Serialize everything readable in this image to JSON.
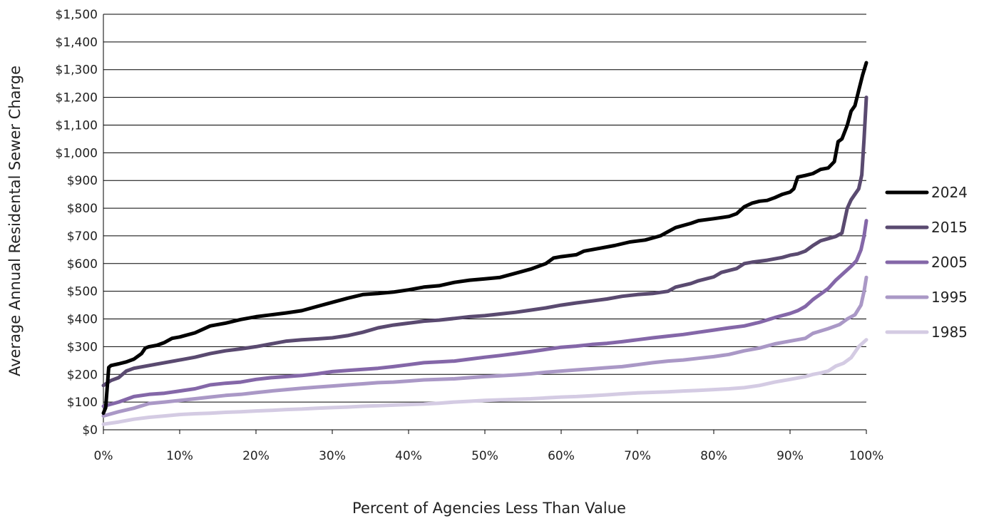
{
  "chart_data": {
    "type": "line",
    "xlabel": "Percent of Agencies Less Than Value",
    "ylabel": "Average Annual Residental Sewer Charge",
    "xlim": [
      0,
      100
    ],
    "ylim": [
      0,
      1500
    ],
    "x_ticks": [
      0,
      10,
      20,
      30,
      40,
      50,
      60,
      70,
      80,
      90,
      100
    ],
    "x_tick_labels": [
      "0%",
      "10%",
      "20%",
      "30%",
      "40%",
      "50%",
      "60%",
      "70%",
      "80%",
      "90%",
      "100%"
    ],
    "y_ticks": [
      0,
      100,
      200,
      300,
      400,
      500,
      600,
      700,
      800,
      900,
      1000,
      1100,
      1200,
      1300,
      1400,
      1500
    ],
    "y_tick_labels": [
      "$0",
      "$100",
      "$200",
      "$300",
      "$400",
      "$500",
      "$600",
      "$700",
      "$800",
      "$900",
      "$1,000",
      "$1,100",
      "$1,200",
      "$1,300",
      "$1,400",
      "$1,500"
    ],
    "grid": true,
    "legend_position": "right",
    "series": [
      {
        "name": "2024",
        "color": "#000000",
        "points": [
          [
            0,
            60
          ],
          [
            0.3,
            80
          ],
          [
            0.7,
            225
          ],
          [
            1,
            232
          ],
          [
            2,
            238
          ],
          [
            3,
            245
          ],
          [
            4,
            255
          ],
          [
            5,
            275
          ],
          [
            5.5,
            295
          ],
          [
            6,
            300
          ],
          [
            7,
            305
          ],
          [
            8,
            315
          ],
          [
            9,
            330
          ],
          [
            10,
            335
          ],
          [
            12,
            350
          ],
          [
            14,
            375
          ],
          [
            16,
            385
          ],
          [
            18,
            398
          ],
          [
            20,
            408
          ],
          [
            22,
            415
          ],
          [
            24,
            422
          ],
          [
            26,
            430
          ],
          [
            28,
            445
          ],
          [
            30,
            460
          ],
          [
            32,
            475
          ],
          [
            34,
            488
          ],
          [
            36,
            492
          ],
          [
            38,
            497
          ],
          [
            40,
            505
          ],
          [
            42,
            515
          ],
          [
            44,
            520
          ],
          [
            46,
            532
          ],
          [
            48,
            540
          ],
          [
            50,
            545
          ],
          [
            52,
            550
          ],
          [
            54,
            565
          ],
          [
            56,
            580
          ],
          [
            58,
            600
          ],
          [
            59,
            620
          ],
          [
            60,
            625
          ],
          [
            62,
            632
          ],
          [
            63,
            645
          ],
          [
            65,
            655
          ],
          [
            67,
            665
          ],
          [
            69,
            678
          ],
          [
            71,
            685
          ],
          [
            73,
            700
          ],
          [
            74,
            715
          ],
          [
            75,
            730
          ],
          [
            77,
            745
          ],
          [
            78,
            755
          ],
          [
            80,
            762
          ],
          [
            82,
            770
          ],
          [
            83,
            780
          ],
          [
            84,
            805
          ],
          [
            85,
            818
          ],
          [
            86,
            825
          ],
          [
            87,
            828
          ],
          [
            88,
            838
          ],
          [
            89,
            850
          ],
          [
            90,
            858
          ],
          [
            90.5,
            870
          ],
          [
            91,
            912
          ],
          [
            92,
            918
          ],
          [
            93,
            925
          ],
          [
            94,
            940
          ],
          [
            95,
            945
          ],
          [
            95.8,
            968
          ],
          [
            96.3,
            1040
          ],
          [
            96.8,
            1050
          ],
          [
            97.5,
            1100
          ],
          [
            98,
            1150
          ],
          [
            98.5,
            1170
          ],
          [
            99,
            1225
          ],
          [
            99.5,
            1280
          ],
          [
            100,
            1325
          ]
        ]
      },
      {
        "name": "2015",
        "color": "#5a4a70",
        "points": [
          [
            0,
            160
          ],
          [
            1,
            178
          ],
          [
            2,
            188
          ],
          [
            3,
            212
          ],
          [
            4,
            222
          ],
          [
            6,
            232
          ],
          [
            8,
            242
          ],
          [
            10,
            252
          ],
          [
            12,
            262
          ],
          [
            14,
            275
          ],
          [
            16,
            285
          ],
          [
            18,
            292
          ],
          [
            20,
            300
          ],
          [
            22,
            310
          ],
          [
            24,
            320
          ],
          [
            26,
            325
          ],
          [
            28,
            328
          ],
          [
            30,
            332
          ],
          [
            32,
            340
          ],
          [
            34,
            352
          ],
          [
            36,
            368
          ],
          [
            38,
            378
          ],
          [
            40,
            385
          ],
          [
            42,
            392
          ],
          [
            44,
            396
          ],
          [
            46,
            402
          ],
          [
            48,
            408
          ],
          [
            50,
            412
          ],
          [
            52,
            418
          ],
          [
            54,
            424
          ],
          [
            56,
            432
          ],
          [
            58,
            440
          ],
          [
            60,
            450
          ],
          [
            62,
            458
          ],
          [
            64,
            465
          ],
          [
            66,
            472
          ],
          [
            68,
            482
          ],
          [
            70,
            488
          ],
          [
            72,
            492
          ],
          [
            74,
            500
          ],
          [
            75,
            515
          ],
          [
            77,
            528
          ],
          [
            78,
            538
          ],
          [
            80,
            552
          ],
          [
            81,
            568
          ],
          [
            83,
            582
          ],
          [
            84,
            600
          ],
          [
            85,
            605
          ],
          [
            87,
            612
          ],
          [
            89,
            622
          ],
          [
            90,
            630
          ],
          [
            91,
            635
          ],
          [
            92,
            645
          ],
          [
            93,
            665
          ],
          [
            94,
            682
          ],
          [
            95,
            690
          ],
          [
            96,
            698
          ],
          [
            96.8,
            710
          ],
          [
            97.5,
            800
          ],
          [
            98,
            830
          ],
          [
            98.5,
            850
          ],
          [
            99,
            870
          ],
          [
            99.4,
            920
          ],
          [
            99.7,
            1050
          ],
          [
            100,
            1200
          ]
        ]
      },
      {
        "name": "2005",
        "color": "#8467a8",
        "points": [
          [
            0,
            85
          ],
          [
            2,
            100
          ],
          [
            4,
            120
          ],
          [
            6,
            128
          ],
          [
            8,
            132
          ],
          [
            10,
            140
          ],
          [
            12,
            148
          ],
          [
            14,
            162
          ],
          [
            16,
            168
          ],
          [
            18,
            172
          ],
          [
            20,
            182
          ],
          [
            22,
            188
          ],
          [
            24,
            192
          ],
          [
            26,
            196
          ],
          [
            28,
            202
          ],
          [
            30,
            210
          ],
          [
            32,
            214
          ],
          [
            34,
            218
          ],
          [
            36,
            222
          ],
          [
            38,
            228
          ],
          [
            40,
            235
          ],
          [
            42,
            242
          ],
          [
            44,
            245
          ],
          [
            46,
            248
          ],
          [
            48,
            255
          ],
          [
            50,
            262
          ],
          [
            52,
            268
          ],
          [
            54,
            275
          ],
          [
            56,
            282
          ],
          [
            58,
            290
          ],
          [
            60,
            298
          ],
          [
            62,
            302
          ],
          [
            64,
            308
          ],
          [
            66,
            312
          ],
          [
            68,
            318
          ],
          [
            70,
            325
          ],
          [
            72,
            332
          ],
          [
            74,
            338
          ],
          [
            76,
            344
          ],
          [
            78,
            352
          ],
          [
            80,
            360
          ],
          [
            82,
            368
          ],
          [
            84,
            375
          ],
          [
            86,
            388
          ],
          [
            88,
            405
          ],
          [
            90,
            420
          ],
          [
            91,
            430
          ],
          [
            92,
            445
          ],
          [
            93,
            470
          ],
          [
            94,
            490
          ],
          [
            95,
            510
          ],
          [
            96,
            540
          ],
          [
            97,
            565
          ],
          [
            98,
            590
          ],
          [
            98.7,
            610
          ],
          [
            99.3,
            650
          ],
          [
            99.7,
            700
          ],
          [
            100,
            755
          ]
        ]
      },
      {
        "name": "1995",
        "color": "#aa98c6",
        "points": [
          [
            0,
            50
          ],
          [
            2,
            65
          ],
          [
            4,
            78
          ],
          [
            6,
            95
          ],
          [
            8,
            100
          ],
          [
            10,
            106
          ],
          [
            12,
            112
          ],
          [
            14,
            118
          ],
          [
            16,
            124
          ],
          [
            18,
            128
          ],
          [
            20,
            134
          ],
          [
            22,
            140
          ],
          [
            24,
            145
          ],
          [
            26,
            150
          ],
          [
            28,
            154
          ],
          [
            30,
            158
          ],
          [
            32,
            162
          ],
          [
            34,
            166
          ],
          [
            36,
            170
          ],
          [
            38,
            172
          ],
          [
            40,
            176
          ],
          [
            42,
            180
          ],
          [
            44,
            182
          ],
          [
            46,
            184
          ],
          [
            48,
            188
          ],
          [
            50,
            192
          ],
          [
            52,
            195
          ],
          [
            54,
            198
          ],
          [
            56,
            202
          ],
          [
            58,
            208
          ],
          [
            60,
            212
          ],
          [
            62,
            216
          ],
          [
            64,
            220
          ],
          [
            66,
            224
          ],
          [
            68,
            228
          ],
          [
            70,
            235
          ],
          [
            72,
            242
          ],
          [
            74,
            248
          ],
          [
            76,
            252
          ],
          [
            78,
            258
          ],
          [
            80,
            264
          ],
          [
            82,
            272
          ],
          [
            84,
            285
          ],
          [
            86,
            295
          ],
          [
            88,
            310
          ],
          [
            90,
            320
          ],
          [
            92,
            330
          ],
          [
            93,
            348
          ],
          [
            95,
            365
          ],
          [
            96.5,
            380
          ],
          [
            97.5,
            400
          ],
          [
            98.5,
            415
          ],
          [
            99.3,
            450
          ],
          [
            99.7,
            500
          ],
          [
            100,
            550
          ]
        ]
      },
      {
        "name": "1985",
        "color": "#d4cbe3",
        "points": [
          [
            0,
            20
          ],
          [
            2,
            28
          ],
          [
            4,
            38
          ],
          [
            6,
            45
          ],
          [
            8,
            50
          ],
          [
            10,
            55
          ],
          [
            12,
            58
          ],
          [
            14,
            60
          ],
          [
            16,
            63
          ],
          [
            18,
            65
          ],
          [
            20,
            68
          ],
          [
            22,
            70
          ],
          [
            24,
            73
          ],
          [
            26,
            75
          ],
          [
            28,
            78
          ],
          [
            30,
            80
          ],
          [
            32,
            82
          ],
          [
            34,
            85
          ],
          [
            36,
            87
          ],
          [
            38,
            89
          ],
          [
            40,
            91
          ],
          [
            42,
            93
          ],
          [
            44,
            96
          ],
          [
            46,
            100
          ],
          [
            48,
            103
          ],
          [
            50,
            106
          ],
          [
            52,
            108
          ],
          [
            54,
            110
          ],
          [
            56,
            112
          ],
          [
            58,
            115
          ],
          [
            60,
            118
          ],
          [
            62,
            120
          ],
          [
            64,
            123
          ],
          [
            66,
            126
          ],
          [
            68,
            130
          ],
          [
            70,
            133
          ],
          [
            72,
            135
          ],
          [
            74,
            137
          ],
          [
            76,
            140
          ],
          [
            78,
            142
          ],
          [
            80,
            145
          ],
          [
            82,
            148
          ],
          [
            84,
            152
          ],
          [
            86,
            160
          ],
          [
            88,
            172
          ],
          [
            90,
            182
          ],
          [
            92,
            192
          ],
          [
            93,
            200
          ],
          [
            94,
            205
          ],
          [
            95,
            212
          ],
          [
            96,
            230
          ],
          [
            97,
            240
          ],
          [
            98,
            260
          ],
          [
            99,
            300
          ],
          [
            100,
            325
          ]
        ]
      }
    ]
  }
}
